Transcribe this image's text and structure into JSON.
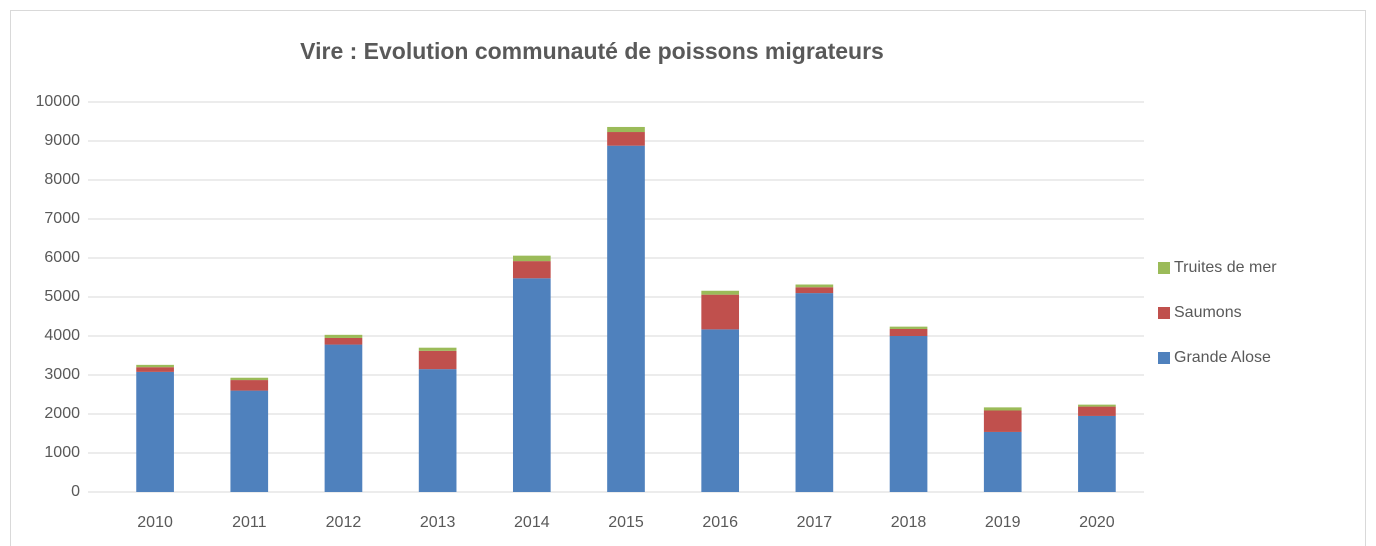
{
  "chart_data": {
    "type": "bar",
    "stacked": true,
    "title": "Vire : Evolution communauté de poissons migrateurs",
    "categories": [
      "2010",
      "2011",
      "2012",
      "2013",
      "2014",
      "2015",
      "2016",
      "2017",
      "2018",
      "2019",
      "2020"
    ],
    "series": [
      {
        "name": "Grande Alose",
        "color": "#4f81bd",
        "values": [
          3080,
          2600,
          3780,
          3150,
          5480,
          8880,
          4170,
          5100,
          4000,
          1540,
          1950
        ]
      },
      {
        "name": "Saumons",
        "color": "#c0504d",
        "values": [
          120,
          270,
          170,
          470,
          440,
          350,
          890,
          150,
          180,
          550,
          240
        ]
      },
      {
        "name": "Truites de mer",
        "color": "#9bbb59",
        "values": [
          60,
          60,
          80,
          80,
          140,
          130,
          100,
          70,
          60,
          80,
          50
        ]
      }
    ],
    "ylim": [
      0,
      10000
    ],
    "yticks": [
      0,
      1000,
      2000,
      3000,
      4000,
      5000,
      6000,
      7000,
      8000,
      9000,
      10000
    ],
    "grid": true,
    "legend": "right"
  }
}
